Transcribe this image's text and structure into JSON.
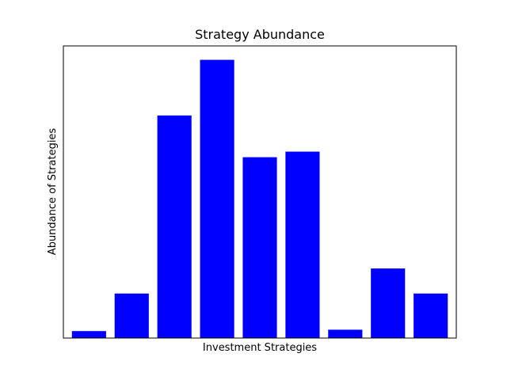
{
  "chart_data": {
    "type": "bar",
    "title": "Strategy Abundance",
    "xlabel": "Investment Strategies",
    "ylabel": "Abundance of Strategies",
    "values": [
      2.5,
      16,
      80,
      100,
      65,
      67,
      3,
      25,
      16
    ],
    "ylim": [
      0,
      105
    ],
    "bar_color": "#0000ff",
    "x_ticks_shown": false,
    "y_ticks_shown": false,
    "grid": false,
    "legend": "none"
  }
}
